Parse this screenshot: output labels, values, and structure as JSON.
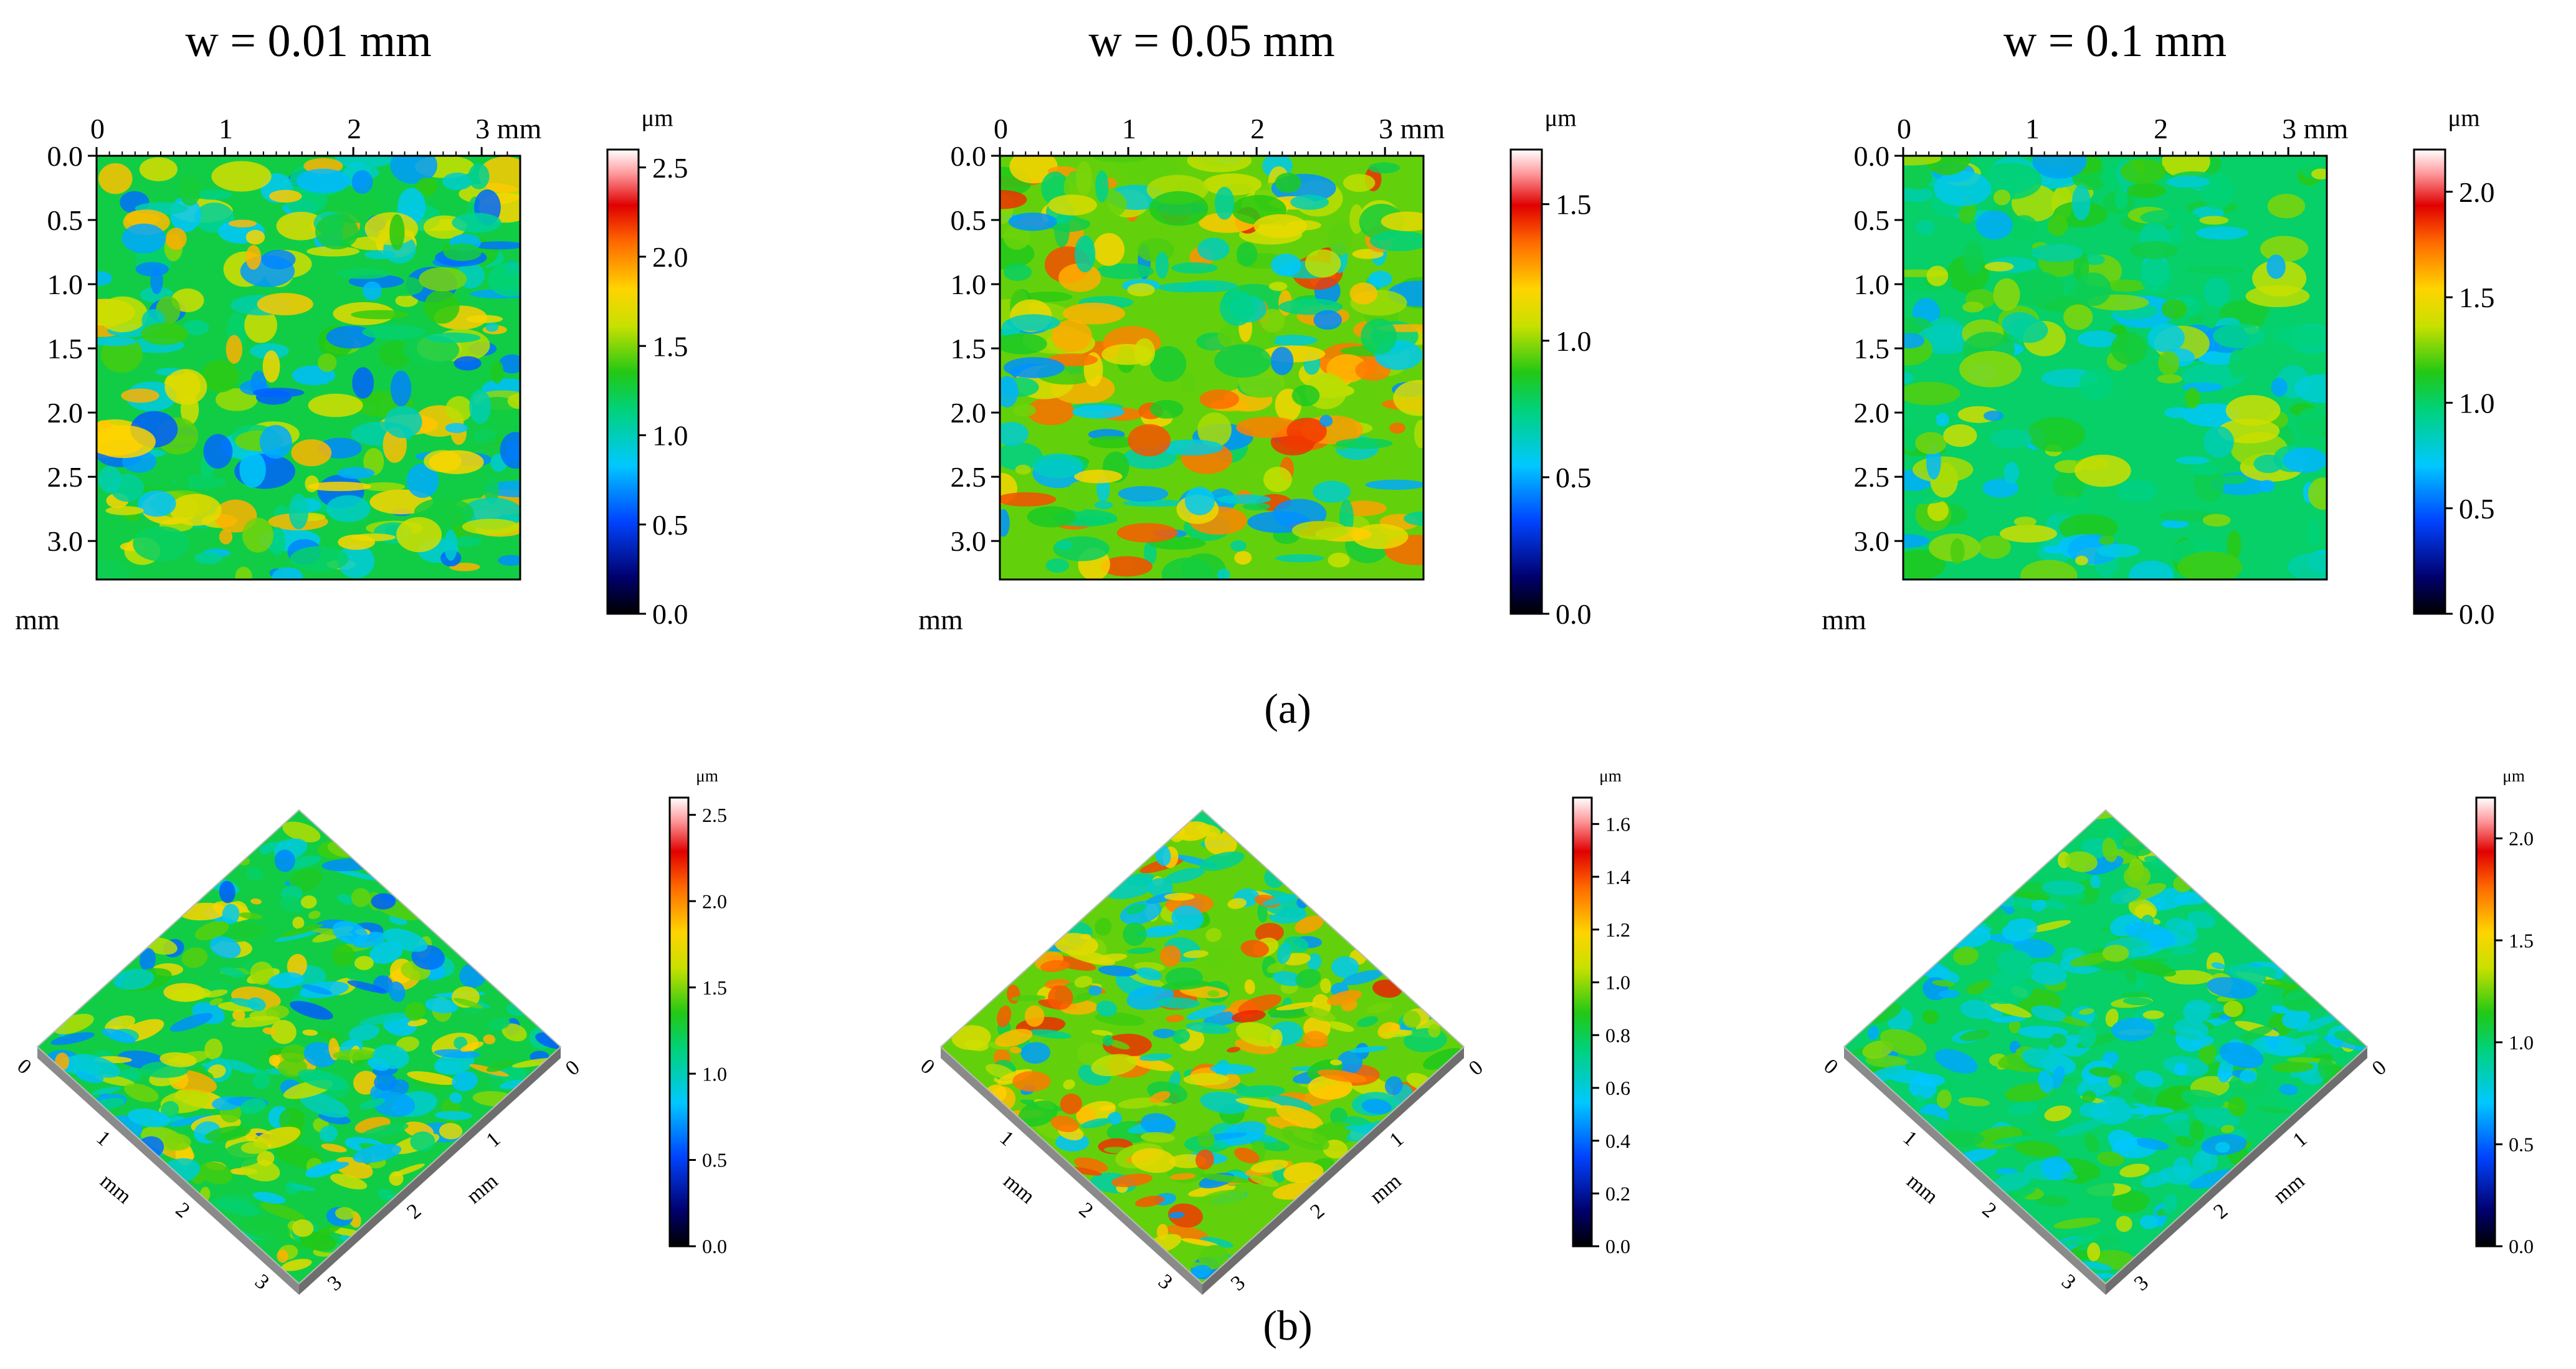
{
  "figure": {
    "label_a": "(a)",
    "label_b": "(b)"
  },
  "chart_data": [
    {
      "type": "heatmap",
      "view": "2D",
      "title": "w = 0.01 mm",
      "x_ticks": [
        "0",
        "1",
        "2",
        "3 mm"
      ],
      "y_ticks": [
        "0.0",
        "0.5",
        "1.0",
        "1.5",
        "2.0",
        "2.5",
        "3.0"
      ],
      "y_unit": "mm",
      "x_range": [
        0,
        3.3
      ],
      "y_range": [
        0,
        3.3
      ],
      "colorbar": {
        "unit": "μm",
        "min": 0.0,
        "max": 2.6,
        "ticks": [
          "0.0",
          "0.5",
          "1.0",
          "1.5",
          "2.0",
          "2.5"
        ],
        "tick_values": [
          0,
          0.5,
          1.0,
          1.5,
          2.0,
          2.5
        ]
      },
      "dominant_value": 1.25
    },
    {
      "type": "heatmap",
      "view": "2D",
      "title": "w = 0.05 mm",
      "x_ticks": [
        "0",
        "1",
        "2",
        "3 mm"
      ],
      "y_ticks": [
        "0.0",
        "0.5",
        "1.0",
        "1.5",
        "2.0",
        "2.5",
        "3.0"
      ],
      "y_unit": "mm",
      "x_range": [
        0,
        3.3
      ],
      "y_range": [
        0,
        3.3
      ],
      "colorbar": {
        "unit": "μm",
        "min": 0.0,
        "max": 1.7,
        "ticks": [
          "0.0",
          "0.5",
          "1.0",
          "1.5"
        ],
        "tick_values": [
          0,
          0.5,
          1.0,
          1.5
        ]
      },
      "dominant_value": 0.95
    },
    {
      "type": "heatmap",
      "view": "2D",
      "title": "w = 0.1 mm",
      "x_ticks": [
        "0",
        "1",
        "2",
        "3 mm"
      ],
      "y_ticks": [
        "0.0",
        "0.5",
        "1.0",
        "1.5",
        "2.0",
        "2.5",
        "3.0"
      ],
      "y_unit": "mm",
      "x_range": [
        0,
        3.3
      ],
      "y_range": [
        0,
        3.3
      ],
      "colorbar": {
        "unit": "μm",
        "min": 0.0,
        "max": 2.2,
        "ticks": [
          "0.0",
          "0.5",
          "1.0",
          "1.5",
          "2.0"
        ],
        "tick_values": [
          0,
          0.5,
          1.0,
          1.5,
          2.0
        ]
      },
      "dominant_value": 1.0
    },
    {
      "type": "heatmap",
      "view": "3D",
      "axis_unit": "mm",
      "axis_ticks": [
        "0",
        "1",
        "2",
        "3"
      ],
      "colorbar": {
        "unit": "μm",
        "min": 0.0,
        "max": 2.6,
        "ticks": [
          "0.0",
          "0.5",
          "1.0",
          "1.5",
          "2.0",
          "2.5"
        ],
        "tick_values": [
          0,
          0.5,
          1.0,
          1.5,
          2.0,
          2.5
        ]
      },
      "dominant_value": 1.25
    },
    {
      "type": "heatmap",
      "view": "3D",
      "axis_unit": "mm",
      "axis_ticks": [
        "0",
        "1",
        "2",
        "3"
      ],
      "colorbar": {
        "unit": "μm",
        "min": 0.0,
        "max": 1.7,
        "ticks": [
          "0.0",
          "0.2",
          "0.4",
          "0.6",
          "0.8",
          "1.0",
          "1.2",
          "1.4",
          "1.6"
        ],
        "tick_values": [
          0,
          0.2,
          0.4,
          0.6,
          0.8,
          1.0,
          1.2,
          1.4,
          1.6
        ]
      },
      "dominant_value": 0.95
    },
    {
      "type": "heatmap",
      "view": "3D",
      "axis_unit": "mm",
      "axis_ticks": [
        "0",
        "1",
        "2",
        "3"
      ],
      "colorbar": {
        "unit": "μm",
        "min": 0.0,
        "max": 2.2,
        "ticks": [
          "0.0",
          "0.5",
          "1.0",
          "1.5",
          "2.0"
        ],
        "tick_values": [
          0,
          0.5,
          1.0,
          1.5,
          2.0
        ]
      },
      "dominant_value": 1.0
    }
  ]
}
